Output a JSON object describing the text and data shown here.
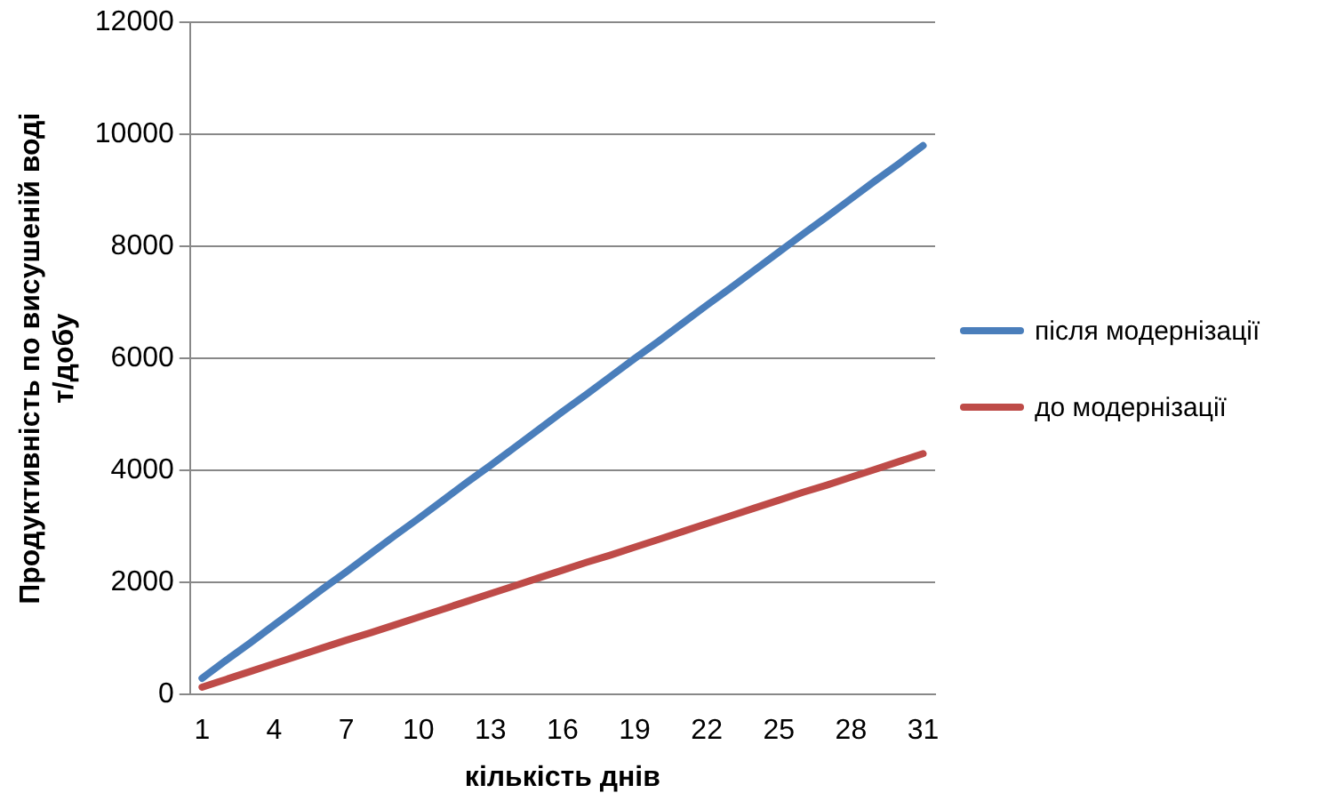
{
  "chart_data": {
    "type": "line",
    "xlabel": "кількість днів",
    "ylabel": "Продуктивність по висушеній воді\nт/добу",
    "categories": [
      "1",
      null,
      null,
      "4",
      null,
      null,
      "7",
      null,
      null,
      "10",
      null,
      null,
      "13",
      null,
      null,
      "16",
      null,
      null,
      "19",
      null,
      null,
      "22",
      null,
      null,
      "25",
      null,
      null,
      "28",
      null,
      null,
      "31"
    ],
    "series": [
      {
        "name": "після модернізації",
        "color": "#4a7ebb",
        "values": [
          290,
          610,
          920,
          1240,
          1560,
          1880,
          2190,
          2510,
          2830,
          3140,
          3460,
          3780,
          4090,
          4410,
          4730,
          5050,
          5360,
          5680,
          6000,
          6310,
          6630,
          6950,
          7260,
          7580,
          7900,
          8220,
          8530,
          8850,
          9170,
          9480,
          9800
        ]
      },
      {
        "name": "до модернізації",
        "color": "#be4b48",
        "values": [
          130,
          270,
          410,
          550,
          690,
          830,
          970,
          1100,
          1240,
          1380,
          1520,
          1660,
          1800,
          1940,
          2080,
          2220,
          2360,
          2490,
          2630,
          2770,
          2910,
          3050,
          3190,
          3330,
          3470,
          3610,
          3740,
          3880,
          4020,
          4160,
          4300
        ]
      }
    ],
    "ylim": [
      0,
      12000
    ],
    "yticks": [
      0,
      2000,
      4000,
      6000,
      8000,
      10000,
      12000
    ],
    "grid": "y",
    "legend": "right",
    "marker": "none",
    "line_style": "solid"
  }
}
